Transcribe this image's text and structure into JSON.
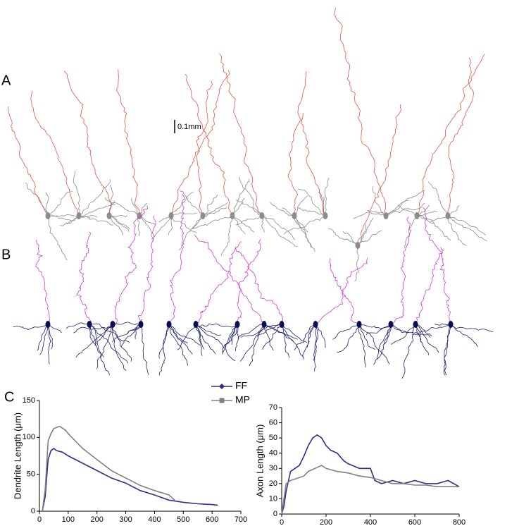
{
  "panel_labels": [
    "A",
    "B",
    "C"
  ],
  "scale_bar": "0.1mm",
  "chart_data": [
    {
      "type": "line",
      "ylabel": "Dendrite Length (μm)",
      "xlim": [
        0,
        700
      ],
      "xticks": [
        0,
        100,
        200,
        300,
        400,
        500,
        600,
        700
      ],
      "ylim": [
        0,
        150
      ],
      "yticks": [
        0,
        50,
        100,
        150
      ],
      "series": [
        {
          "name": "FF",
          "color": "#2b2f8f",
          "marker": "diamond",
          "x": [
            10,
            20,
            30,
            40,
            50,
            60,
            80,
            100,
            150,
            200,
            250,
            300,
            350,
            400,
            450,
            500,
            550,
            600,
            620
          ],
          "values": [
            0,
            20,
            70,
            82,
            85,
            82,
            80,
            75,
            65,
            55,
            45,
            38,
            28,
            22,
            15,
            12,
            10,
            9,
            8
          ]
        },
        {
          "name": "MP",
          "color": "#808080",
          "marker": "square",
          "x": [
            10,
            20,
            30,
            40,
            50,
            70,
            90,
            100,
            150,
            200,
            250,
            300,
            350,
            400,
            450,
            470
          ],
          "values": [
            0,
            30,
            95,
            105,
            112,
            115,
            110,
            105,
            85,
            70,
            55,
            45,
            35,
            28,
            22,
            15
          ]
        }
      ]
    },
    {
      "type": "line",
      "ylabel": "Axon Length (μm)",
      "xlim": [
        0,
        800
      ],
      "xticks": [
        0,
        200,
        400,
        600,
        800
      ],
      "ylim": [
        0,
        70
      ],
      "yticks": [
        0,
        10,
        20,
        30,
        40,
        50,
        60,
        70
      ],
      "series": [
        {
          "color": "#2b2f8f",
          "x": [
            0,
            10,
            20,
            40,
            60,
            80,
            100,
            120,
            140,
            160,
            180,
            200,
            220,
            250,
            280,
            300,
            350,
            400,
            420,
            450,
            500,
            550,
            600,
            650,
            700,
            750,
            800
          ],
          "values": [
            0,
            5,
            15,
            28,
            30,
            32,
            38,
            45,
            50,
            52,
            50,
            45,
            42,
            40,
            35,
            33,
            30,
            30,
            22,
            20,
            22,
            20,
            22,
            20,
            20,
            22,
            18
          ]
        },
        {
          "color": "#808080",
          "x": [
            0,
            20,
            40,
            60,
            80,
            100,
            120,
            150,
            180,
            200,
            250,
            300,
            350,
            400,
            450,
            500,
            550,
            600,
            650,
            700,
            750,
            800
          ],
          "values": [
            0,
            20,
            22,
            23,
            24,
            25,
            28,
            30,
            32,
            30,
            28,
            27,
            25,
            24,
            22,
            20,
            20,
            19,
            19,
            18,
            18,
            18
          ]
        }
      ]
    }
  ]
}
